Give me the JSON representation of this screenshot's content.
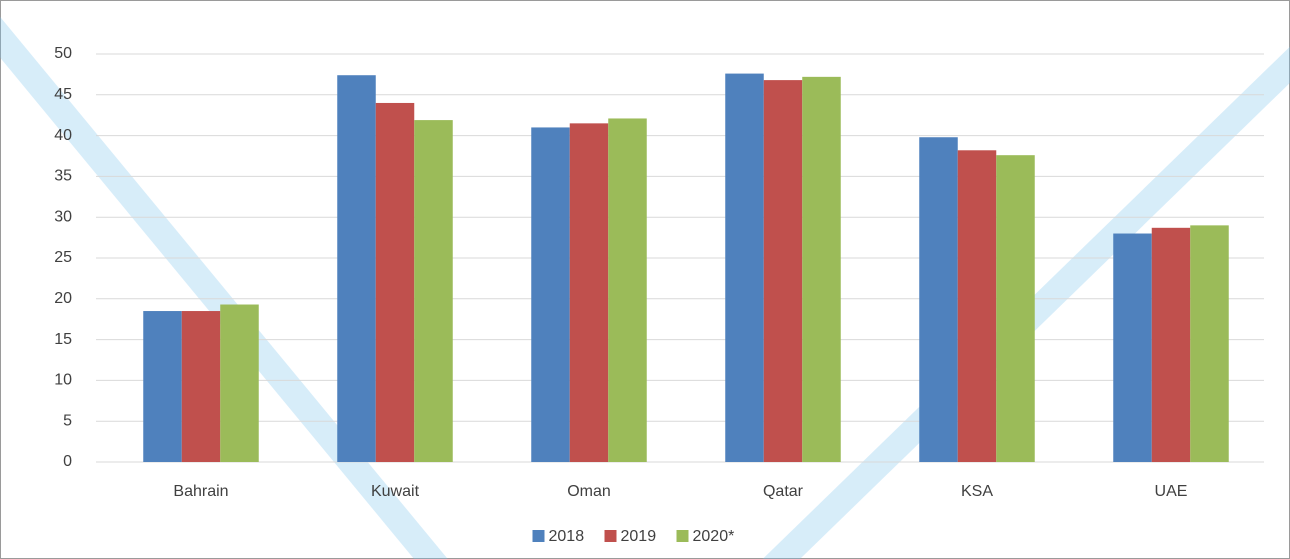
{
  "chart_data": {
    "type": "bar",
    "categories": [
      "Bahrain",
      "Kuwait",
      "Oman",
      "Qatar",
      "KSA",
      "UAE"
    ],
    "series": [
      {
        "name": "2018",
        "color": "#4f81bd",
        "values": [
          18.5,
          47.4,
          41,
          47.6,
          39.8,
          28
        ]
      },
      {
        "name": "2019",
        "color": "#c0504d",
        "values": [
          18.5,
          44,
          41.5,
          46.8,
          38.2,
          28.7
        ]
      },
      {
        "name": "2020*",
        "color": "#9bbb59",
        "values": [
          19.3,
          41.9,
          42.1,
          47.2,
          37.6,
          29
        ]
      }
    ],
    "ylim": [
      0,
      50
    ],
    "yticks": [
      0,
      5,
      10,
      15,
      20,
      25,
      30,
      35,
      40,
      45,
      50
    ],
    "grid": true,
    "legend": "bottom"
  }
}
